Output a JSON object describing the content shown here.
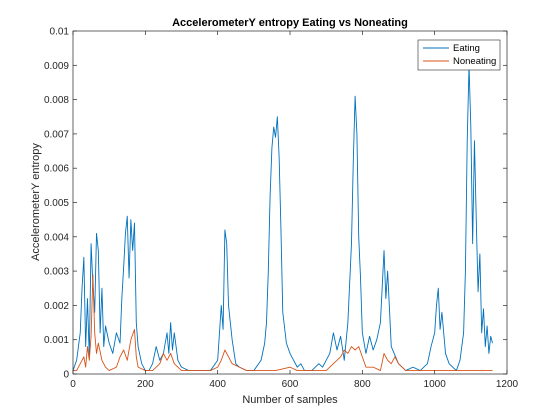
{
  "chart_data": {
    "type": "line",
    "title": "AccelerometerY entropy Eating vs Noneating",
    "xlabel": "Number of samples",
    "ylabel": "AccelerometerY entropy",
    "xlim": [
      0,
      1200
    ],
    "ylim": [
      0,
      0.01
    ],
    "xticks": [
      0,
      200,
      400,
      600,
      800,
      1000,
      1200
    ],
    "xtick_labels": [
      "0",
      "200",
      "400",
      "600",
      "800",
      "1000",
      "1200"
    ],
    "yticks": [
      0,
      0.001,
      0.002,
      0.003,
      0.004,
      0.005,
      0.006,
      0.007,
      0.008,
      0.009,
      0.01
    ],
    "ytick_labels": [
      "0",
      "0.001",
      "0.002",
      "0.003",
      "0.004",
      "0.005",
      "0.006",
      "0.007",
      "0.008",
      "0.009",
      "0.01"
    ],
    "grid": false,
    "legend_position": "top-right",
    "series": [
      {
        "name": "Eating",
        "color": "#0072BD",
        "points": [
          [
            0,
            0.0001
          ],
          [
            10,
            0.0004
          ],
          [
            20,
            0.0012
          ],
          [
            25,
            0.0025
          ],
          [
            30,
            0.0034
          ],
          [
            35,
            0.0008
          ],
          [
            40,
            0.0022
          ],
          [
            45,
            0.0005
          ],
          [
            50,
            0.0038
          ],
          [
            55,
            0.0026
          ],
          [
            60,
            0.0018
          ],
          [
            65,
            0.0041
          ],
          [
            70,
            0.0036
          ],
          [
            75,
            0.0012
          ],
          [
            80,
            0.0025
          ],
          [
            85,
            0.0008
          ],
          [
            90,
            0.0014
          ],
          [
            100,
            0.0009
          ],
          [
            110,
            0.0006
          ],
          [
            120,
            0.0012
          ],
          [
            130,
            0.0009
          ],
          [
            135,
            0.0022
          ],
          [
            140,
            0.0031
          ],
          [
            145,
            0.0041
          ],
          [
            150,
            0.0046
          ],
          [
            155,
            0.0028
          ],
          [
            160,
            0.0045
          ],
          [
            165,
            0.0036
          ],
          [
            170,
            0.0044
          ],
          [
            175,
            0.0015
          ],
          [
            180,
            0.0008
          ],
          [
            190,
            0.0003
          ],
          [
            200,
            0.0001
          ],
          [
            210,
            0.0001
          ],
          [
            220,
            0.0003
          ],
          [
            230,
            0.0008
          ],
          [
            240,
            0.0004
          ],
          [
            250,
            0.0006
          ],
          [
            260,
            0.0012
          ],
          [
            265,
            0.0006
          ],
          [
            270,
            0.0015
          ],
          [
            275,
            0.0007
          ],
          [
            280,
            0.0012
          ],
          [
            290,
            0.0004
          ],
          [
            300,
            0.0002
          ],
          [
            320,
            0.0001
          ],
          [
            350,
            0.0001
          ],
          [
            380,
            0.0001
          ],
          [
            400,
            0.0004
          ],
          [
            405,
            0.0012
          ],
          [
            410,
            0.002
          ],
          [
            415,
            0.0013
          ],
          [
            420,
            0.0042
          ],
          [
            425,
            0.0038
          ],
          [
            430,
            0.002
          ],
          [
            440,
            0.001
          ],
          [
            450,
            0.0003
          ],
          [
            460,
            0.0002
          ],
          [
            480,
            0.0001
          ],
          [
            500,
            0.0001
          ],
          [
            520,
            0.0004
          ],
          [
            530,
            0.0009
          ],
          [
            535,
            0.0015
          ],
          [
            540,
            0.003
          ],
          [
            545,
            0.0052
          ],
          [
            550,
            0.0066
          ],
          [
            555,
            0.0072
          ],
          [
            560,
            0.0069
          ],
          [
            565,
            0.0075
          ],
          [
            570,
            0.0063
          ],
          [
            575,
            0.0042
          ],
          [
            580,
            0.0018
          ],
          [
            590,
            0.0009
          ],
          [
            600,
            0.0006
          ],
          [
            610,
            0.0004
          ],
          [
            620,
            0.0002
          ],
          [
            630,
            0.0003
          ],
          [
            640,
            0.0001
          ],
          [
            660,
            0.0001
          ],
          [
            680,
            0.0003
          ],
          [
            690,
            0.0002
          ],
          [
            700,
            0.0004
          ],
          [
            710,
            0.0006
          ],
          [
            720,
            0.0012
          ],
          [
            730,
            0.0007
          ],
          [
            740,
            0.0011
          ],
          [
            750,
            0.0004
          ],
          [
            760,
            0.0015
          ],
          [
            770,
            0.0038
          ],
          [
            775,
            0.0062
          ],
          [
            780,
            0.0081
          ],
          [
            785,
            0.007
          ],
          [
            790,
            0.004
          ],
          [
            795,
            0.0028
          ],
          [
            800,
            0.0012
          ],
          [
            810,
            0.0006
          ],
          [
            820,
            0.0011
          ],
          [
            830,
            0.0007
          ],
          [
            840,
            0.001
          ],
          [
            850,
            0.0015
          ],
          [
            860,
            0.0036
          ],
          [
            865,
            0.0022
          ],
          [
            870,
            0.003
          ],
          [
            880,
            0.0008
          ],
          [
            900,
            0.0003
          ],
          [
            920,
            0.0001
          ],
          [
            940,
            0.0002
          ],
          [
            960,
            0.0001
          ],
          [
            980,
            0.0003
          ],
          [
            990,
            0.0008
          ],
          [
            1000,
            0.0012
          ],
          [
            1005,
            0.002
          ],
          [
            1010,
            0.0025
          ],
          [
            1015,
            0.0013
          ],
          [
            1020,
            0.0018
          ],
          [
            1030,
            0.0006
          ],
          [
            1040,
            0.0003
          ],
          [
            1050,
            0.0002
          ],
          [
            1060,
            0.0001
          ],
          [
            1070,
            0.0004
          ],
          [
            1080,
            0.0012
          ],
          [
            1085,
            0.003
          ],
          [
            1090,
            0.0068
          ],
          [
            1095,
            0.009
          ],
          [
            1100,
            0.0072
          ],
          [
            1105,
            0.0038
          ],
          [
            1110,
            0.0068
          ],
          [
            1115,
            0.0045
          ],
          [
            1120,
            0.0024
          ],
          [
            1125,
            0.0035
          ],
          [
            1130,
            0.0012
          ],
          [
            1135,
            0.0019
          ],
          [
            1140,
            0.0008
          ],
          [
            1145,
            0.0014
          ],
          [
            1150,
            0.0006
          ],
          [
            1155,
            0.0011
          ],
          [
            1160,
            0.0009
          ]
        ]
      },
      {
        "name": "Noneating",
        "color": "#D95319",
        "points": [
          [
            0,
            0.0001
          ],
          [
            10,
            0.0001
          ],
          [
            20,
            0.0003
          ],
          [
            30,
            0.0005
          ],
          [
            35,
            0.0002
          ],
          [
            40,
            0.0008
          ],
          [
            45,
            0.0004
          ],
          [
            50,
            0.0011
          ],
          [
            55,
            0.0029
          ],
          [
            60,
            0.0012
          ],
          [
            65,
            0.0006
          ],
          [
            70,
            0.0009
          ],
          [
            80,
            0.0004
          ],
          [
            90,
            0.0002
          ],
          [
            100,
            0.0001
          ],
          [
            120,
            0.0002
          ],
          [
            130,
            0.0005
          ],
          [
            140,
            0.0007
          ],
          [
            150,
            0.0004
          ],
          [
            160,
            0.001
          ],
          [
            170,
            0.0013
          ],
          [
            175,
            0.0005
          ],
          [
            180,
            0.0002
          ],
          [
            200,
            0.0001
          ],
          [
            220,
            0.0001
          ],
          [
            240,
            0.0003
          ],
          [
            250,
            0.0006
          ],
          [
            260,
            0.0004
          ],
          [
            270,
            0.0006
          ],
          [
            280,
            0.0003
          ],
          [
            300,
            0.0001
          ],
          [
            340,
            0.0001
          ],
          [
            380,
            0.0001
          ],
          [
            400,
            0.0002
          ],
          [
            410,
            0.0004
          ],
          [
            420,
            0.0007
          ],
          [
            430,
            0.0005
          ],
          [
            440,
            0.0003
          ],
          [
            460,
            0.0002
          ],
          [
            480,
            0.0001
          ],
          [
            520,
            0.0001
          ],
          [
            560,
            0.0001
          ],
          [
            600,
            0.0002
          ],
          [
            620,
            0.0001
          ],
          [
            660,
            0.0001
          ],
          [
            700,
            0.0001
          ],
          [
            720,
            0.0003
          ],
          [
            740,
            0.0005
          ],
          [
            750,
            0.0007
          ],
          [
            760,
            0.0006
          ],
          [
            770,
            0.0008
          ],
          [
            780,
            0.0007
          ],
          [
            790,
            0.0008
          ],
          [
            800,
            0.0005
          ],
          [
            810,
            0.0002
          ],
          [
            830,
            0.0002
          ],
          [
            850,
            0.0001
          ],
          [
            860,
            0.0006
          ],
          [
            870,
            0.0004
          ],
          [
            880,
            0.0003
          ],
          [
            890,
            0.0005
          ],
          [
            900,
            0.0003
          ],
          [
            920,
            0.0001
          ],
          [
            960,
            0.0001
          ],
          [
            1000,
            0.0001
          ],
          [
            1040,
            0.0001
          ],
          [
            1080,
            0.0001
          ],
          [
            1100,
            0.0001
          ],
          [
            1130,
            0.0001
          ],
          [
            1160,
            0.0001
          ]
        ]
      }
    ]
  }
}
